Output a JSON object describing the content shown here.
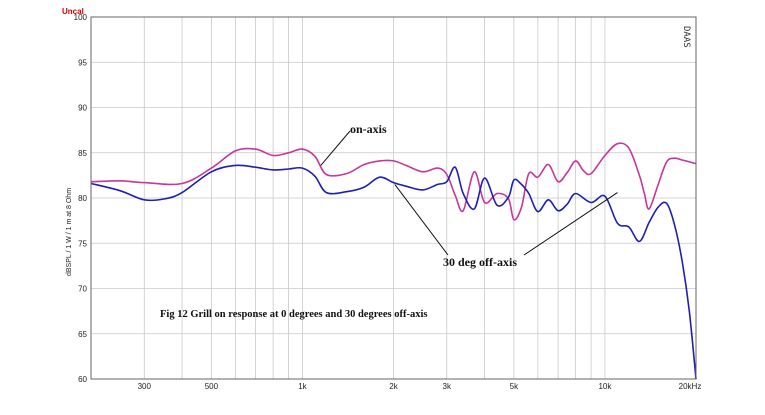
{
  "chart_data": {
    "type": "line",
    "corner_label": "Uncal",
    "brand": "DAAS",
    "ylabel": "dBSPL / 1 W / 1 m at 8 Ohm",
    "xscale": "log",
    "xlim": [
      200,
      20000
    ],
    "ylim": [
      60,
      100
    ],
    "y_ticks": [
      60,
      65,
      70,
      75,
      80,
      85,
      90,
      95,
      100
    ],
    "x_ticks": [
      {
        "value": 300,
        "label": "300"
      },
      {
        "value": 500,
        "label": "500"
      },
      {
        "value": 1000,
        "label": "1k"
      },
      {
        "value": 2000,
        "label": "2k"
      },
      {
        "value": 3000,
        "label": "3k"
      },
      {
        "value": 5000,
        "label": "5k"
      },
      {
        "value": 10000,
        "label": "10k"
      },
      {
        "value": 20000,
        "label": "20kHz"
      }
    ],
    "grid": true,
    "series": [
      {
        "name": "on-axis",
        "color": "#c8359c",
        "x": [
          200,
          250,
          300,
          400,
          500,
          600,
          700,
          800,
          900,
          1000,
          1100,
          1200,
          1400,
          1600,
          1800,
          2000,
          2200,
          2500,
          2800,
          3000,
          3200,
          3400,
          3700,
          4000,
          4400,
          4800,
          5000,
          5300,
          5600,
          6000,
          6500,
          7000,
          7500,
          8000,
          8500,
          9000,
          10000,
          11000,
          12000,
          13000,
          13500,
          14000,
          15000,
          16000,
          17000,
          18000,
          20000
        ],
        "y": [
          81.8,
          81.9,
          81.7,
          81.6,
          83.3,
          85.2,
          85.4,
          84.7,
          85.0,
          85.4,
          84.6,
          82.6,
          82.7,
          83.7,
          84.1,
          84.1,
          83.6,
          82.9,
          83.3,
          82.6,
          80.3,
          78.6,
          82.9,
          79.5,
          80.5,
          79.9,
          77.6,
          79.0,
          82.7,
          82.3,
          83.7,
          81.8,
          82.8,
          84.1,
          83.0,
          82.7,
          84.7,
          86.0,
          85.5,
          82.5,
          80.5,
          78.8,
          81.5,
          84.0,
          84.4,
          84.2,
          83.8
        ]
      },
      {
        "name": "30 deg off-axis",
        "color": "#1f1fb0",
        "x": [
          200,
          250,
          300,
          350,
          400,
          500,
          600,
          700,
          800,
          900,
          1000,
          1100,
          1200,
          1400,
          1600,
          1800,
          2000,
          2200,
          2500,
          2800,
          3000,
          3200,
          3400,
          3700,
          4000,
          4400,
          4800,
          5000,
          5300,
          5600,
          6000,
          6500,
          7000,
          7500,
          8000,
          9000,
          10000,
          11000,
          12000,
          13000,
          14000,
          15000,
          16000,
          17000,
          18000,
          19000,
          20000
        ],
        "y": [
          81.6,
          80.8,
          79.8,
          79.9,
          80.6,
          82.9,
          83.6,
          83.4,
          83.1,
          83.2,
          83.3,
          82.4,
          80.6,
          80.7,
          81.2,
          82.3,
          81.7,
          81.3,
          80.9,
          81.5,
          81.8,
          83.4,
          80.5,
          78.8,
          82.2,
          79.2,
          80.1,
          82.0,
          81.5,
          80.5,
          78.5,
          79.8,
          78.6,
          79.3,
          80.5,
          79.5,
          80.2,
          77.2,
          76.8,
          75.2,
          77.3,
          79.0,
          79.4,
          77.0,
          73.0,
          67.5,
          60.0
        ]
      }
    ],
    "annotations": [
      {
        "text": "on-axis"
      },
      {
        "text": "30 deg off-axis"
      }
    ],
    "caption": "Fig 12  Grill on response at 0 degrees and 30 degrees off-axis"
  }
}
